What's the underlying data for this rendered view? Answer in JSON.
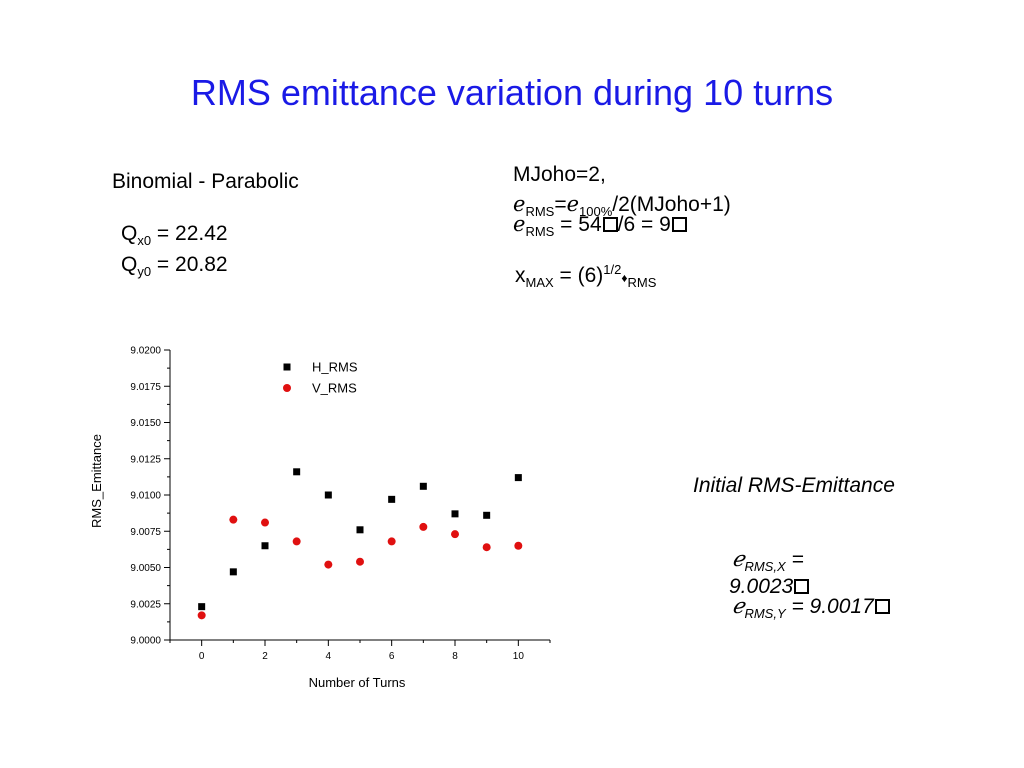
{
  "slide": {
    "title": "RMS emittance variation during 10 turns",
    "distribution": "Binomial - Parabolic",
    "qx_label": "Q",
    "qx_sub": "x0",
    "qx_value": " = 22.42",
    "qy_label": "Q",
    "qy_sub": "y0",
    "qy_value": " = 20.82",
    "param_line": "MJoho=2,",
    "formula1_sym": "ℯ",
    "formula1_sub": "RMS",
    "formula1_eq": "=ℯ",
    "formula1_sub2": "100%",
    "formula1_rest": "/2(MJoho+1)",
    "formula2_sym": "ℯ",
    "formula2_sub": "RMS",
    "formula2_rest1": " = 54",
    "formula2_rest2": "/6 = 9",
    "formula3_x": "x",
    "formula3_sub": "MAX",
    "formula3_mid": " = (6)",
    "formula3_sup": "1/2",
    "formula3_diamond": "♦",
    "formula3_sub2": "RMS",
    "initial_heading": "Initial RMS-Emittance",
    "initx_sym": "ℯ",
    "initx_sub": "RMS,X",
    "initx_eq": " =",
    "initx_value": "9.0023",
    "inity_sym": "ℯ",
    "inity_sub": "RMS,Y",
    "inity_value": " = 9.0017"
  },
  "chart_data": {
    "type": "scatter",
    "xlabel": "Number of Turns",
    "ylabel": "RMS_Emittance",
    "xlim": [
      -1,
      11
    ],
    "ylim": [
      9.0,
      9.02
    ],
    "xticks": [
      "0",
      "2",
      "4",
      "6",
      "8",
      "10"
    ],
    "yticks": [
      "9.0000",
      "9.0025",
      "9.0050",
      "9.0075",
      "9.0100",
      "9.0125",
      "9.0150",
      "9.0175",
      "9.0200"
    ],
    "legend_position": "top-center",
    "series": [
      {
        "name": "H_RMS",
        "marker": "square",
        "color": "#000000",
        "x": [
          0,
          1,
          2,
          3,
          4,
          5,
          6,
          7,
          8,
          9,
          10
        ],
        "y": [
          9.0023,
          9.0047,
          9.0065,
          9.0116,
          9.01,
          9.0076,
          9.0097,
          9.0106,
          9.0087,
          9.0086,
          9.0112
        ]
      },
      {
        "name": "V_RMS",
        "marker": "circle",
        "color": "#e01010",
        "x": [
          0,
          1,
          2,
          3,
          4,
          5,
          6,
          7,
          8,
          9,
          10
        ],
        "y": [
          9.0017,
          9.0083,
          9.0081,
          9.0068,
          9.0052,
          9.0054,
          9.0068,
          9.0078,
          9.0073,
          9.0064,
          9.0065
        ]
      }
    ]
  },
  "colors": {
    "title": "#1a1ae6",
    "v_series": "#e01010",
    "h_series": "#000000"
  }
}
